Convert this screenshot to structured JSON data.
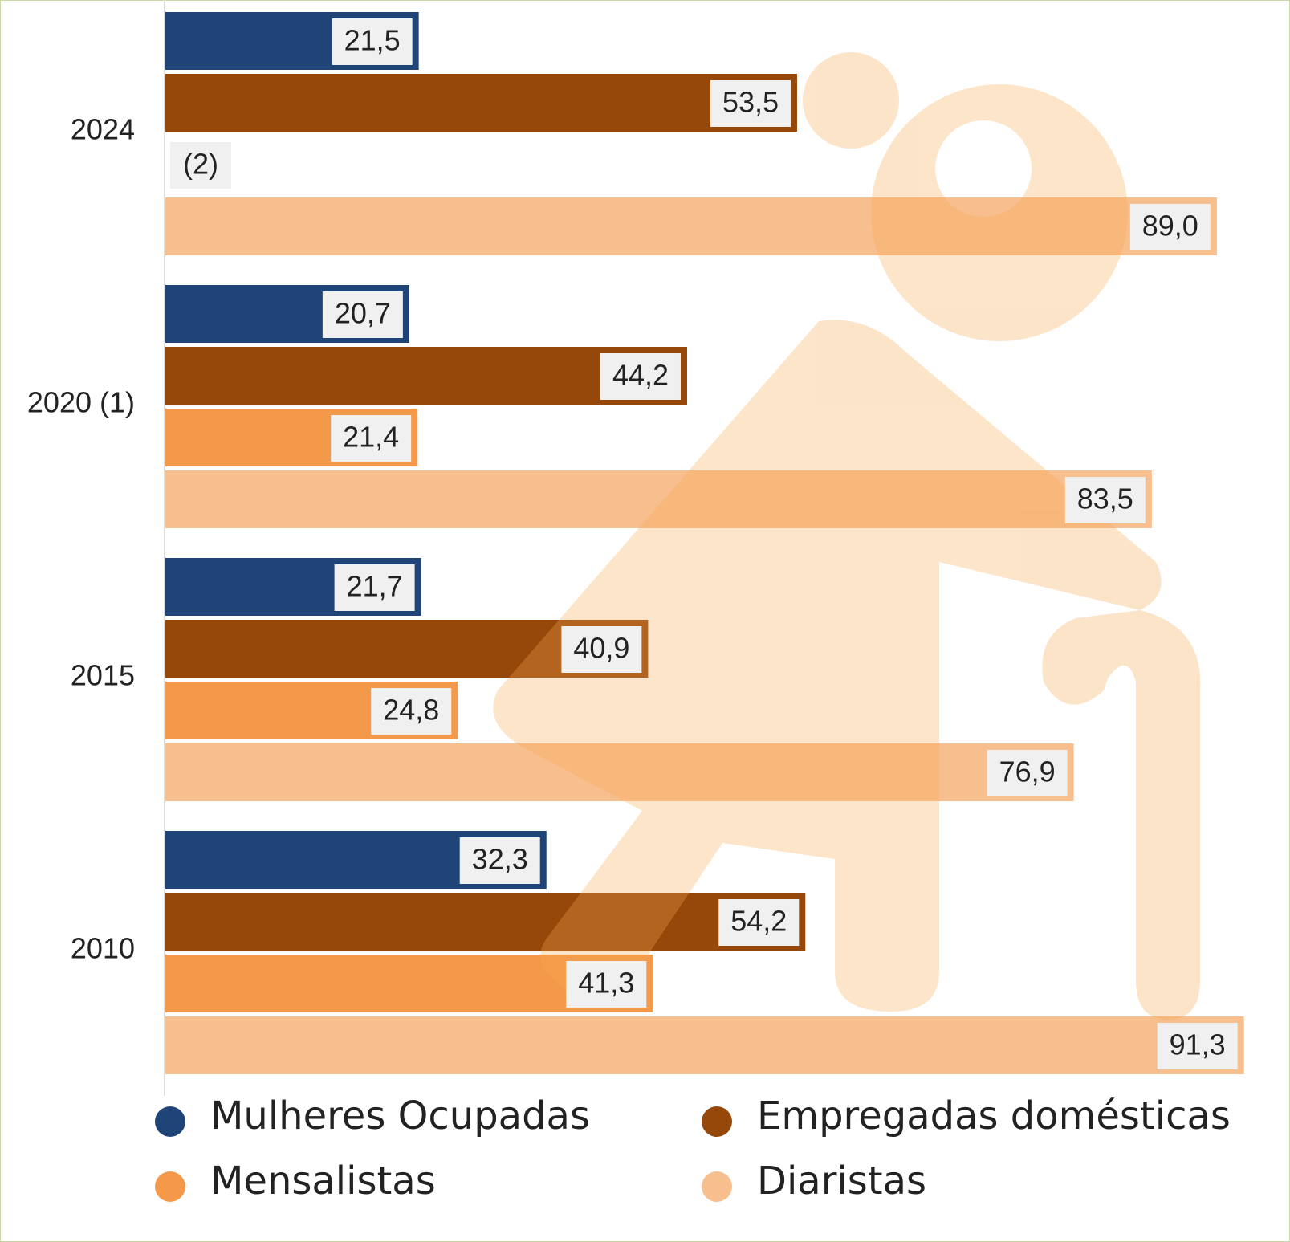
{
  "chart_data": {
    "type": "hbar",
    "categories": [
      "2024",
      "2020 (1)",
      "2015",
      "2010"
    ],
    "series": [
      {
        "name": "Mulheres Ocupadas",
        "color": "#1f4478",
        "values": [
          21.5,
          20.7,
          21.7,
          32.3
        ],
        "value_labels": [
          "21,5",
          "20,7",
          "21,7",
          "32,3"
        ]
      },
      {
        "name": "Empregadas domésticas",
        "color": "#96470a",
        "values": [
          53.5,
          44.2,
          40.9,
          54.2
        ],
        "value_labels": [
          "53,5",
          "44,2",
          "40,9",
          "54,2"
        ]
      },
      {
        "name": "Mensalistas",
        "color": "#f4994a",
        "values": [
          null,
          21.4,
          24.8,
          41.3
        ],
        "value_labels": [
          "(2)",
          "21,4",
          "24,8",
          "41,3"
        ]
      },
      {
        "name": "Diaristas",
        "color": "#f8bf8e",
        "values": [
          89.0,
          83.5,
          76.9,
          91.3
        ],
        "value_labels": [
          "89,0",
          "83,5",
          "76,9",
          "91,3"
        ]
      }
    ],
    "xlim": [
      0,
      92
    ]
  }
}
